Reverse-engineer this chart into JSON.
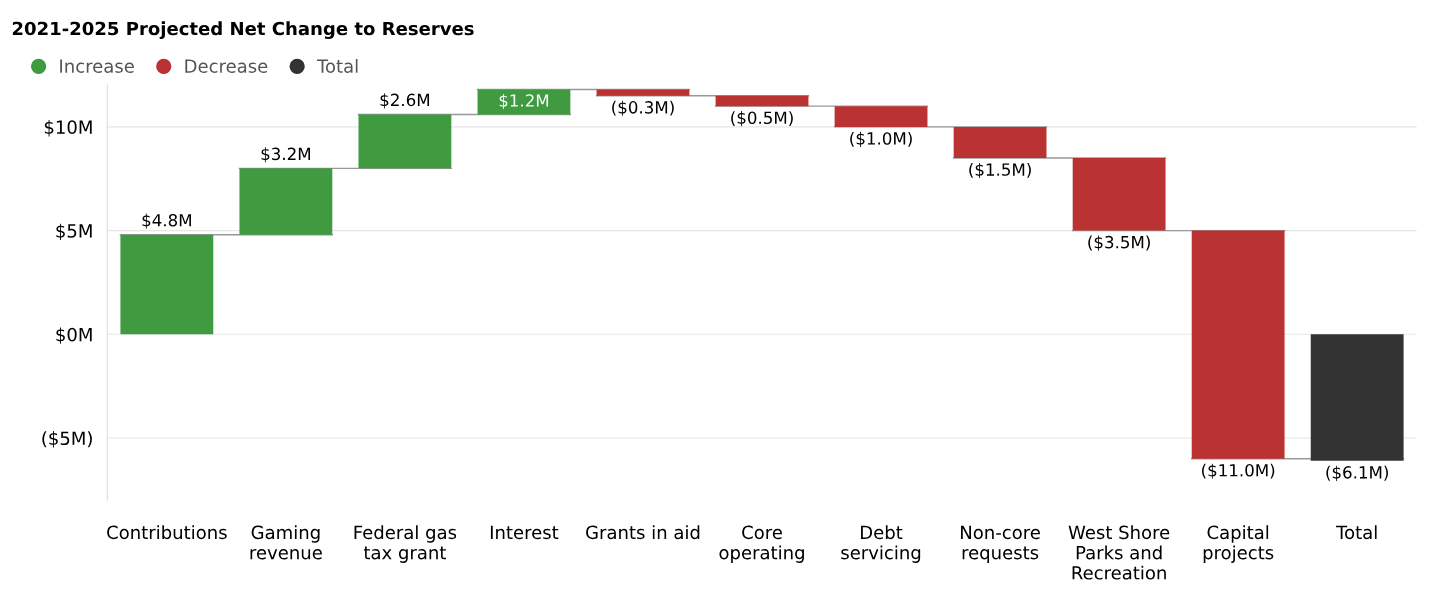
{
  "chart_data": {
    "type": "bar",
    "title": "2021-2025 Projected Net Change to Reserves",
    "categories": [
      "Contributions",
      "Gaming revenue",
      "Federal gas tax grant",
      "Interest",
      "Grants in aid",
      "Core operating",
      "Debt servicing",
      "Non-core requests",
      "West Shore Parks and Recreation",
      "Capital projects",
      "Total"
    ],
    "series": [
      {
        "name": "Increase",
        "color": "#3f9a40",
        "values": [
          4.8,
          3.2,
          2.6,
          1.2,
          null,
          null,
          null,
          null,
          null,
          null,
          null
        ],
        "base": [
          0,
          4.8,
          8.0,
          10.6,
          null,
          null,
          null,
          null,
          null,
          null,
          null
        ]
      },
      {
        "name": "Decrease",
        "color": "#bb3233",
        "values": [
          null,
          null,
          null,
          null,
          -0.3,
          -0.5,
          -1.0,
          -1.5,
          -3.5,
          -11.0,
          null
        ],
        "base": [
          null,
          null,
          null,
          null,
          11.8,
          11.5,
          11.0,
          10.0,
          8.5,
          5.0,
          null
        ]
      },
      {
        "name": "Total",
        "color": "#333333",
        "values": [
          null,
          null,
          null,
          null,
          null,
          null,
          null,
          null,
          null,
          null,
          -6.1
        ],
        "base": [
          null,
          null,
          null,
          null,
          null,
          null,
          null,
          null,
          null,
          null,
          0
        ]
      }
    ],
    "value_labels": [
      "$4.8M",
      "$3.2M",
      "$2.6M",
      "$1.2M",
      "($0.3M)",
      "($0.5M)",
      "($1.0M)",
      "($1.5M)",
      "($3.5M)",
      "($11.0M)",
      "($6.1M)"
    ],
    "ylim": [
      -8,
      12
    ],
    "yticks": [
      {
        "value": -5,
        "label": "($5M)"
      },
      {
        "value": 0,
        "label": "$0M"
      },
      {
        "value": 5,
        "label": "$5M"
      },
      {
        "value": 10,
        "label": "$10M"
      }
    ],
    "grid": "y",
    "legend": "top left"
  }
}
